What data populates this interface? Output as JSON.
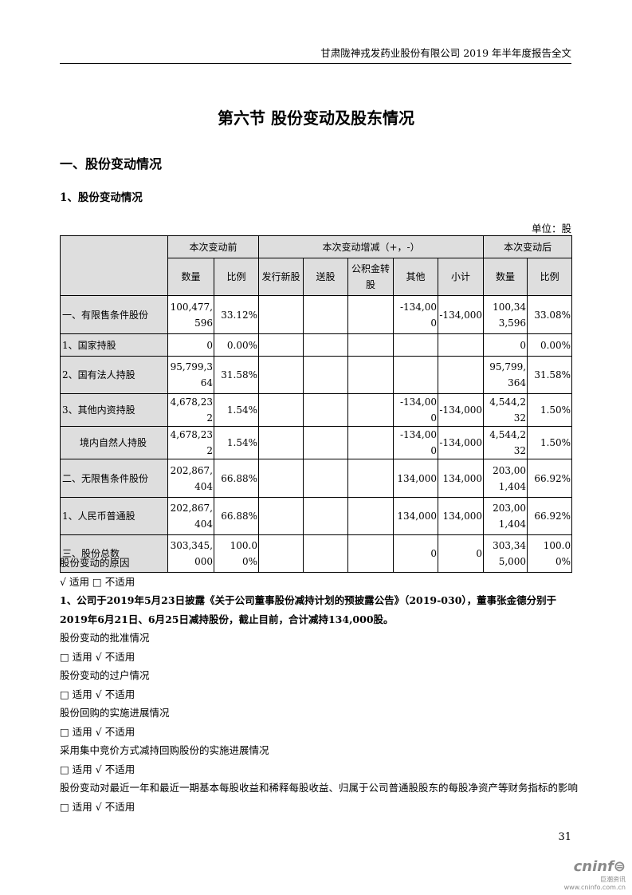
{
  "header": "甘肃陇神戎发药业股份有限公司 2019 年半年度报告全文",
  "title": "第六节 股份变动及股东情况",
  "h1": "一、股份变动情况",
  "h2": "1、股份变动情况",
  "unit": "单位：股",
  "table": {
    "group_headers": [
      "本次变动前",
      "本次变动增减（+，-）",
      "本次变动后"
    ],
    "sub_headers": [
      "数量",
      "比例",
      "发行新股",
      "送股",
      "公积金转股",
      "其他",
      "小计",
      "数量",
      "比例"
    ],
    "rows": [
      {
        "label": "一、有限售条件股份",
        "cells": [
          "100,477,596",
          "33.12%",
          "",
          "",
          "",
          "-134,000",
          "-134,000",
          "100,343,596",
          "33.08%"
        ]
      },
      {
        "label": "1、国家持股",
        "cells": [
          "0",
          "0.00%",
          "",
          "",
          "",
          "",
          "",
          "0",
          "0.00%"
        ]
      },
      {
        "label": "2、国有法人持股",
        "cells": [
          "95,799,364",
          "31.58%",
          "",
          "",
          "",
          "",
          "",
          "95,799,364",
          "31.58%"
        ]
      },
      {
        "label": "3、其他内资持股",
        "cells": [
          "4,678,232",
          "1.54%",
          "",
          "",
          "",
          "-134,000",
          "-134,000",
          "4,544,232",
          "1.50%"
        ]
      },
      {
        "label": "境内自然人持股",
        "cells": [
          "4,678,232",
          "1.54%",
          "",
          "",
          "",
          "-134,000",
          "-134,000",
          "4,544,232",
          "1.50%"
        ]
      },
      {
        "label": "二、无限售条件股份",
        "cells": [
          "202,867,404",
          "66.88%",
          "",
          "",
          "",
          "134,000",
          "134,000",
          "203,001,404",
          "66.92%"
        ]
      },
      {
        "label": "1、人民币普通股",
        "cells": [
          "202,867,404",
          "66.88%",
          "",
          "",
          "",
          "134,000",
          "134,000",
          "203,001,404",
          "66.92%"
        ]
      },
      {
        "label": "三、股份总数",
        "cells": [
          "303,345,000",
          "100.00%",
          "",
          "",
          "",
          "0",
          "0",
          "303,345,000",
          "100.00%"
        ]
      }
    ]
  },
  "body": [
    {
      "text": "股份变动的原因",
      "bold": false
    },
    {
      "text": "√ 适用 □ 不适用",
      "bold": false
    },
    {
      "text": "1、公司于2019年5月23日披露《关于公司董事股份减持计划的预披露公告》（2019-030），董事张金德分别于2019年6月21日、6月25日减持股份，截止目前，合计减持134,000股。",
      "bold": true
    },
    {
      "text": "股份变动的批准情况",
      "bold": false
    },
    {
      "text": "□ 适用 √ 不适用",
      "bold": false
    },
    {
      "text": "股份变动的过户情况",
      "bold": false
    },
    {
      "text": "□ 适用 √ 不适用",
      "bold": false
    },
    {
      "text": "股份回购的实施进展情况",
      "bold": false
    },
    {
      "text": "□ 适用 √ 不适用",
      "bold": false
    },
    {
      "text": "采用集中竞价方式减持回购股份的实施进展情况",
      "bold": false
    },
    {
      "text": "□ 适用 √ 不适用",
      "bold": false
    },
    {
      "text": "股份变动对最近一年和最近一期基本每股收益和稀释每股收益、归属于公司普通股股东的每股净资产等财务指标的影响",
      "bold": false
    },
    {
      "text": "□ 适用 √ 不适用",
      "bold": false
    }
  ],
  "page_number": "31",
  "watermark": {
    "brand": "cninf",
    "cn": "巨潮资讯",
    "url": "www.cninfo.com.cn"
  }
}
